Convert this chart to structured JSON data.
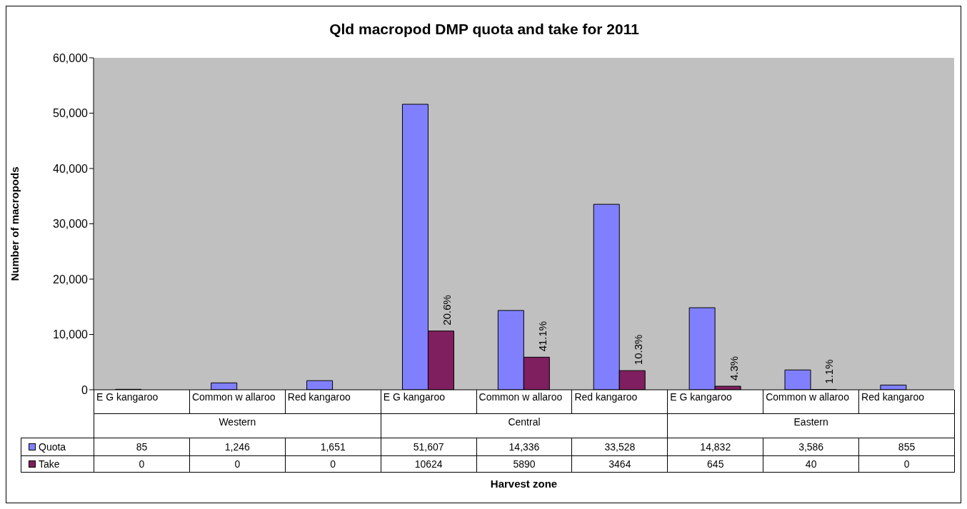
{
  "chart_data": {
    "type": "bar",
    "title": "Qld macropod DMP quota and take for 2011",
    "ylabel": "Number of macropods",
    "categories": [
      "E G kangaroo",
      "Common w allaroo",
      "Red kangaroo",
      "E G kangaroo",
      "Common w allaroo",
      "Red kangaroo",
      "E G kangaroo",
      "Common w allaroo",
      "Red kangaroo"
    ],
    "annotations": [
      "Western",
      "Central",
      "Eastern",
      "20.6%",
      "41.1%",
      "10.3%",
      "4.3%",
      "1.1%",
      "Harvest zone"
    ],
    "series": [
      {
        "name": "Quota",
        "color": "#8080ff",
        "values": [
          85,
          1246,
          1651,
          51607,
          14336,
          33528,
          14832,
          3586,
          855
        ],
        "value_labels": [
          "85",
          "1,246",
          "1,651",
          "51,607",
          "14,336",
          "33,528",
          "14,832",
          "3,586",
          "855"
        ]
      },
      {
        "name": "Take",
        "color": "#801f5f",
        "values": [
          0,
          0,
          0,
          10624,
          5890,
          3464,
          645,
          40,
          0
        ],
        "value_labels": [
          "0",
          "0",
          "0",
          "10624",
          "5890",
          "3464",
          "645",
          "40",
          "0"
        ]
      }
    ],
    "ylim": [
      0,
      60000
    ],
    "yticks": [
      0,
      {
        "value": 10000,
        "label": "10,000"
      },
      {
        "value": 20000,
        "label": "20,000"
      },
      {
        "value": 30000,
        "label": "30,000"
      },
      {
        "value": 40000,
        "label": "40,000"
      },
      {
        "value": 50000,
        "label": "50,000"
      },
      {
        "value": 60000,
        "label": "60,000"
      }
    ],
    "grid": false,
    "legend": "bottom"
  }
}
